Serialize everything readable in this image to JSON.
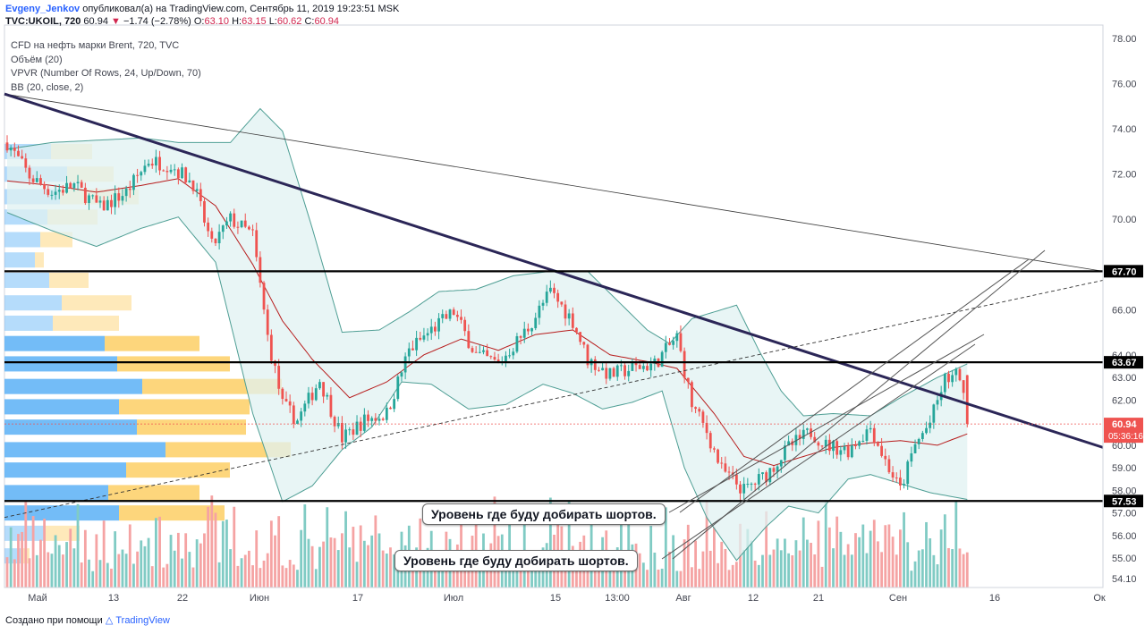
{
  "header": {
    "author": "Evgeny_Jenkov",
    "published_text": "опубликовал(а) на TradingView.com, Сентябрь 11, 2019 19:23:51 MSK",
    "symbol": "TVC:UKOIL, 720",
    "last_price": "60.94",
    "change_arrow": "▼",
    "change": "−1.74 (−2.78%)",
    "open_label": "O:",
    "open": "63.10",
    "high_label": "H:",
    "high": "63.15",
    "low_label": "L:",
    "low": "60.62",
    "close_label": "C:",
    "close": "60.94"
  },
  "legend": {
    "title": "CFD на нефть марки Brent, 720, TVC",
    "volume": "Объём (20)",
    "vpvr": "VPVR (Number Of Rows, 24, Up/Down, 70)",
    "bb": "BB (20, close, 2)"
  },
  "annotations": [
    "Уровень где буду добирать шортов.",
    "Уровень где буду добирать шортов."
  ],
  "footer": {
    "text": "Создано при помощи",
    "brand": "TradingView"
  },
  "colors": {
    "up": "#26a69a",
    "down": "#ef5350",
    "up_volume": "#80cbc4",
    "down_volume": "#f5a3a3",
    "vp_up": "#64b5f6",
    "vp_down": "#fdd26e",
    "bb_fill": "#e0f2f1",
    "bb_line": "#4e9e94",
    "bb_basis": "#b71c1c",
    "trendline": "#2b2657"
  },
  "chart_data": {
    "type": "candlestick",
    "symbol": "TVC:UKOIL",
    "y_axis": {
      "range": [
        53.7,
        78.6
      ],
      "ticks": [
        54.1,
        55.0,
        56.0,
        57.0,
        58.0,
        59.0,
        60.0,
        61.0,
        62.0,
        63.0,
        64.0,
        66.0,
        70.0,
        72.0,
        74.0,
        76.0,
        78.0
      ]
    },
    "x_axis": {
      "ticks": [
        "Май",
        "13",
        "22",
        "Июн",
        "17",
        "Июл",
        "15",
        "13:00",
        "Авг",
        "12",
        "21",
        "Сен",
        "16",
        "Ок"
      ]
    },
    "levels": [
      {
        "price": 67.7,
        "label": "67.70"
      },
      {
        "price": 63.67,
        "label": "63.67"
      },
      {
        "price": 57.53,
        "label": "57.53"
      }
    ],
    "current_price": {
      "value": 60.94,
      "label": "60.94",
      "countdown": "05:36:16"
    },
    "close_anchors": [
      [
        0,
        73.4
      ],
      [
        6,
        71.9
      ],
      [
        12,
        71.2
      ],
      [
        18,
        71.5
      ],
      [
        25,
        70.5
      ],
      [
        32,
        71.2
      ],
      [
        38,
        72.6
      ],
      [
        44,
        72.4
      ],
      [
        50,
        71.6
      ],
      [
        55,
        68.8
      ],
      [
        60,
        70.0
      ],
      [
        66,
        69.3
      ],
      [
        70,
        64.8
      ],
      [
        74,
        61.8
      ],
      [
        78,
        61.1
      ],
      [
        84,
        62.9
      ],
      [
        90,
        60.3
      ],
      [
        96,
        61.1
      ],
      [
        102,
        61.4
      ],
      [
        108,
        64.2
      ],
      [
        114,
        65.1
      ],
      [
        120,
        65.9
      ],
      [
        126,
        64.0
      ],
      [
        132,
        63.6
      ],
      [
        140,
        65.2
      ],
      [
        146,
        66.8
      ],
      [
        152,
        65.5
      ],
      [
        156,
        63.8
      ],
      [
        162,
        63.1
      ],
      [
        168,
        63.4
      ],
      [
        174,
        63.6
      ],
      [
        180,
        64.8
      ],
      [
        184,
        61.8
      ],
      [
        188,
        60.6
      ],
      [
        192,
        58.9
      ],
      [
        198,
        58.0
      ],
      [
        204,
        58.7
      ],
      [
        210,
        59.9
      ],
      [
        216,
        60.6
      ],
      [
        220,
        60.0
      ],
      [
        226,
        59.8
      ],
      [
        232,
        60.8
      ],
      [
        236,
        59.3
      ],
      [
        240,
        58.0
      ],
      [
        244,
        60.0
      ],
      [
        248,
        61.0
      ],
      [
        252,
        62.9
      ],
      [
        256,
        63.1
      ],
      [
        258,
        60.94
      ]
    ],
    "bb_upper_anchors": [
      [
        0,
        73.1
      ],
      [
        12,
        73.4
      ],
      [
        24,
        73.5
      ],
      [
        36,
        73.6
      ],
      [
        46,
        73.4
      ],
      [
        60,
        73.4
      ],
      [
        68,
        74.9
      ],
      [
        74,
        73.9
      ],
      [
        82,
        69.6
      ],
      [
        90,
        65.0
      ],
      [
        100,
        65.1
      ],
      [
        108,
        65.9
      ],
      [
        116,
        66.8
      ],
      [
        126,
        66.9
      ],
      [
        136,
        67.5
      ],
      [
        146,
        67.7
      ],
      [
        156,
        67.7
      ],
      [
        164,
        66.4
      ],
      [
        172,
        65.1
      ],
      [
        178,
        64.5
      ],
      [
        184,
        65.6
      ],
      [
        190,
        65.9
      ],
      [
        196,
        66.2
      ],
      [
        202,
        64.2
      ],
      [
        208,
        62.4
      ],
      [
        214,
        61.3
      ],
      [
        222,
        61.4
      ],
      [
        232,
        61.3
      ],
      [
        240,
        62.1
      ],
      [
        250,
        63.0
      ],
      [
        258,
        63.6
      ]
    ],
    "bb_lower_anchors": [
      [
        0,
        70.3
      ],
      [
        12,
        69.5
      ],
      [
        24,
        68.8
      ],
      [
        36,
        69.6
      ],
      [
        46,
        70.1
      ],
      [
        56,
        68.1
      ],
      [
        66,
        61.4
      ],
      [
        74,
        57.5
      ],
      [
        82,
        58.2
      ],
      [
        90,
        59.8
      ],
      [
        98,
        60.8
      ],
      [
        106,
        62.8
      ],
      [
        114,
        62.7
      ],
      [
        124,
        61.6
      ],
      [
        134,
        61.8
      ],
      [
        144,
        62.7
      ],
      [
        152,
        62.3
      ],
      [
        160,
        61.6
      ],
      [
        168,
        61.9
      ],
      [
        176,
        62.4
      ],
      [
        182,
        59.0
      ],
      [
        188,
        56.8
      ],
      [
        196,
        54.9
      ],
      [
        204,
        56.4
      ],
      [
        210,
        57.3
      ],
      [
        218,
        57.0
      ],
      [
        226,
        58.5
      ],
      [
        232,
        58.7
      ],
      [
        240,
        58.3
      ],
      [
        248,
        57.9
      ],
      [
        258,
        57.6
      ]
    ],
    "bb_basis_anchors": [
      [
        0,
        71.7
      ],
      [
        12,
        71.5
      ],
      [
        24,
        71.2
      ],
      [
        36,
        71.5
      ],
      [
        46,
        71.8
      ],
      [
        56,
        70.6
      ],
      [
        66,
        68.0
      ],
      [
        74,
        65.5
      ],
      [
        82,
        63.8
      ],
      [
        92,
        62.1
      ],
      [
        102,
        62.8
      ],
      [
        112,
        64.0
      ],
      [
        122,
        64.7
      ],
      [
        132,
        64.2
      ],
      [
        142,
        64.9
      ],
      [
        152,
        65.1
      ],
      [
        162,
        64.0
      ],
      [
        172,
        63.7
      ],
      [
        180,
        63.4
      ],
      [
        190,
        61.4
      ],
      [
        198,
        59.5
      ],
      [
        206,
        59.1
      ],
      [
        214,
        59.5
      ],
      [
        222,
        59.9
      ],
      [
        232,
        60.1
      ],
      [
        240,
        60.2
      ],
      [
        250,
        60.0
      ],
      [
        258,
        60.5
      ]
    ],
    "volume_profile": [
      {
        "price": 73.0,
        "up": 52,
        "down": 46
      },
      {
        "price": 72.0,
        "up": 70,
        "down": 52
      },
      {
        "price": 71.0,
        "up": 62,
        "down": 88
      },
      {
        "price": 70.1,
        "up": 48,
        "down": 56
      },
      {
        "price": 69.1,
        "up": 40,
        "down": 36
      },
      {
        "price": 68.2,
        "up": 34,
        "down": 10
      },
      {
        "price": 67.3,
        "up": 50,
        "down": 44
      },
      {
        "price": 66.3,
        "up": 64,
        "down": 78
      },
      {
        "price": 65.4,
        "up": 54,
        "down": 74
      },
      {
        "price": 64.5,
        "up": 112,
        "down": 106
      },
      {
        "price": 63.6,
        "up": 126,
        "down": 126
      },
      {
        "price": 62.6,
        "up": 154,
        "down": 156
      },
      {
        "price": 61.7,
        "up": 128,
        "down": 146
      },
      {
        "price": 60.8,
        "up": 148,
        "down": 122
      },
      {
        "price": 59.8,
        "up": 180,
        "down": 140
      },
      {
        "price": 58.9,
        "up": 136,
        "down": 116
      },
      {
        "price": 57.9,
        "up": 116,
        "down": 102
      },
      {
        "price": 57.0,
        "up": 128,
        "down": 118
      },
      {
        "price": 56.1,
        "up": 44,
        "down": 40
      },
      {
        "price": 55.1,
        "up": 18,
        "down": 10
      }
    ]
  }
}
